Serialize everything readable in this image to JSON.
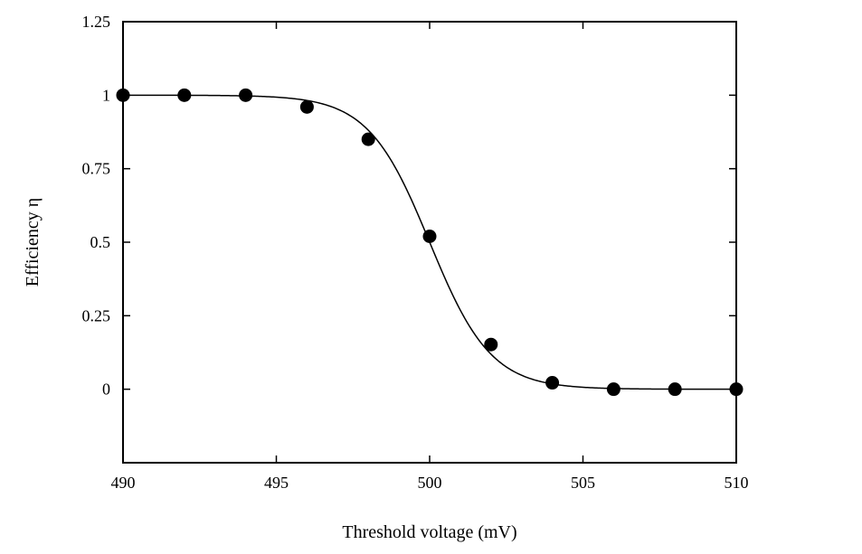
{
  "chart_data": {
    "type": "scatter",
    "title": "",
    "xlabel": "Threshold voltage (mV)",
    "ylabel": "Efficiency η",
    "xlim": [
      490,
      510
    ],
    "ylim": [
      -0.25,
      1.25
    ],
    "xticks": [
      490,
      495,
      500,
      505,
      510
    ],
    "xtick_labels": [
      "490",
      "495",
      "500",
      "505",
      "510"
    ],
    "yticks": [
      0,
      0.25,
      0.5,
      0.75,
      1,
      1.25
    ],
    "ytick_labels": [
      "0",
      "0.25",
      "0.5",
      "0.75",
      "1",
      "1.25"
    ],
    "grid": false,
    "series": [
      {
        "kind": "points",
        "marker": "filled-circle",
        "color": "#000000",
        "x": [
          490,
          492,
          494,
          496,
          498,
          500,
          502,
          504,
          506,
          508,
          510
        ],
        "y": [
          1.0,
          1.0,
          1.0,
          0.96,
          0.85,
          0.52,
          0.152,
          0.022,
          0.0,
          0.0,
          0.0
        ]
      },
      {
        "kind": "fit-curve",
        "function": "sigmoid",
        "color": "#000000",
        "amplitude": 1.0,
        "midpoint": 500.0,
        "width": 1.0
      }
    ]
  }
}
